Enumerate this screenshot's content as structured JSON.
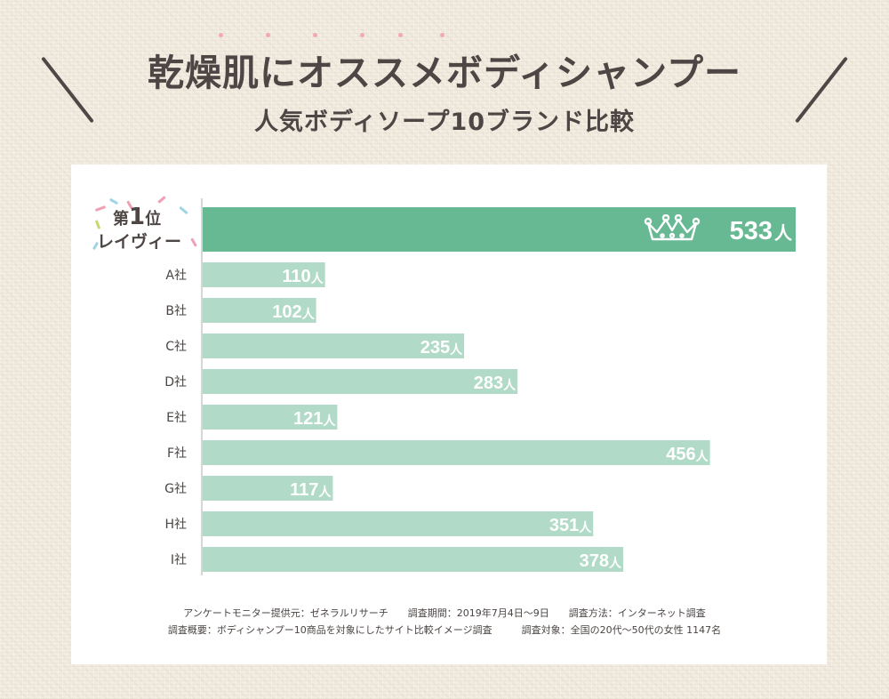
{
  "header": {
    "title": "乾燥肌にオススメボディシャンプー",
    "subtitle": "人気ボディソープ10ブランド比較"
  },
  "top_badge": {
    "rank_prefix": "第",
    "rank_number": "1",
    "rank_suffix": "位"
  },
  "colors": {
    "top_bar": "#67b994",
    "bar": "#b1dbc8",
    "axis": "#c8c8c8",
    "label_text": "#4a4442"
  },
  "chart_data": {
    "type": "bar",
    "orientation": "horizontal",
    "categories": [
      "レイヴィー",
      "A社",
      "B社",
      "C社",
      "D社",
      "E社",
      "F社",
      "G社",
      "H社",
      "I社"
    ],
    "values": [
      533,
      110,
      102,
      235,
      283,
      121,
      456,
      117,
      351,
      378
    ],
    "unit": "人",
    "xlim": [
      0,
      533
    ],
    "highlight_index": 0,
    "highlight_icon": "crown-icon",
    "grid": false
  },
  "footnotes": {
    "line1": "アンケートモニター提供元：ゼネラルリサーチ　　調査期間：2019年7月4日〜9日　　調査方法：インターネット調査",
    "line2": "調査概要：ボディシャンプー10商品を対象にしたサイト比較イメージ調査　　　調査対象：全国の20代〜50代の女性 1147名"
  }
}
